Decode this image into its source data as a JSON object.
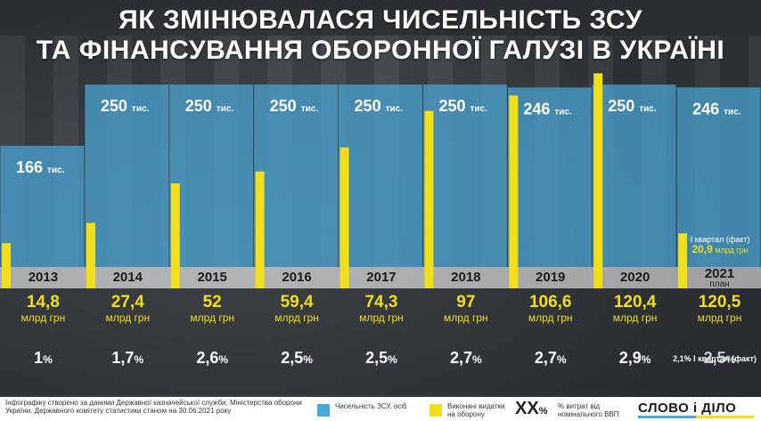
{
  "title": {
    "line1": "ЯК ЗМІНЮВАЛАСЯ ЧИСЕЛЬНІСТЬ ЗСУ",
    "line2": "ТА ФІНАНСУВАННЯ ОБОРОННОЇ ГАЛУЗІ В УКРАЇНІ"
  },
  "colors": {
    "blue": "#4aa8d8",
    "yellow": "#f2de19",
    "white": "#ffffff"
  },
  "chart_data": {
    "type": "bar",
    "categories": [
      "2013",
      "2014",
      "2015",
      "2016",
      "2017",
      "2018",
      "2019",
      "2020",
      "2021"
    ],
    "series": [
      {
        "name": "Чисельність ЗСУ, осіб",
        "values": [
          166,
          250,
          250,
          250,
          250,
          250,
          246,
          250,
          246
        ],
        "labels": [
          "166",
          "250",
          "250",
          "250",
          "250",
          "250",
          "246",
          "250",
          "246"
        ],
        "unit": "тис."
      },
      {
        "name": "Виконані видатки на оборону",
        "values": [
          14.8,
          27.4,
          52,
          59.4,
          74.3,
          97,
          106.6,
          120.4,
          120.5
        ],
        "labels": [
          "14,8",
          "27,4",
          "52",
          "59,4",
          "74,3",
          "97",
          "106,6",
          "120,4",
          "120,5"
        ],
        "unit": "млрд грн"
      }
    ],
    "gdp_share": [
      "1",
      "1,7",
      "2,6",
      "2,5",
      "2,5",
      "2,7",
      "2,7",
      "2,9",
      "2,5"
    ],
    "gdp_unit": "%",
    "plan_label": "план",
    "q1_2021": {
      "label": "I квартал (факт)",
      "value": 20.9,
      "value_label": "20,9",
      "unit": "млрд грн",
      "gdp_note": "2,1% I квартал (факт)"
    }
  },
  "footer": {
    "source": "Інфографіку створено за даними Державної казначейської служби, Міністерства оборони України, Державного комітету статистики станом на 30.06.2021 року",
    "legend_blue": "Чисельність ЗСУ, осіб",
    "legend_yellow": "Виконані видатки на оборону",
    "legend_pct_symbol": "XX",
    "legend_pct_suffix": "%",
    "legend_pct": "% витрат від номінального ВВП",
    "logo": "СЛОВО і ДІЛО"
  }
}
